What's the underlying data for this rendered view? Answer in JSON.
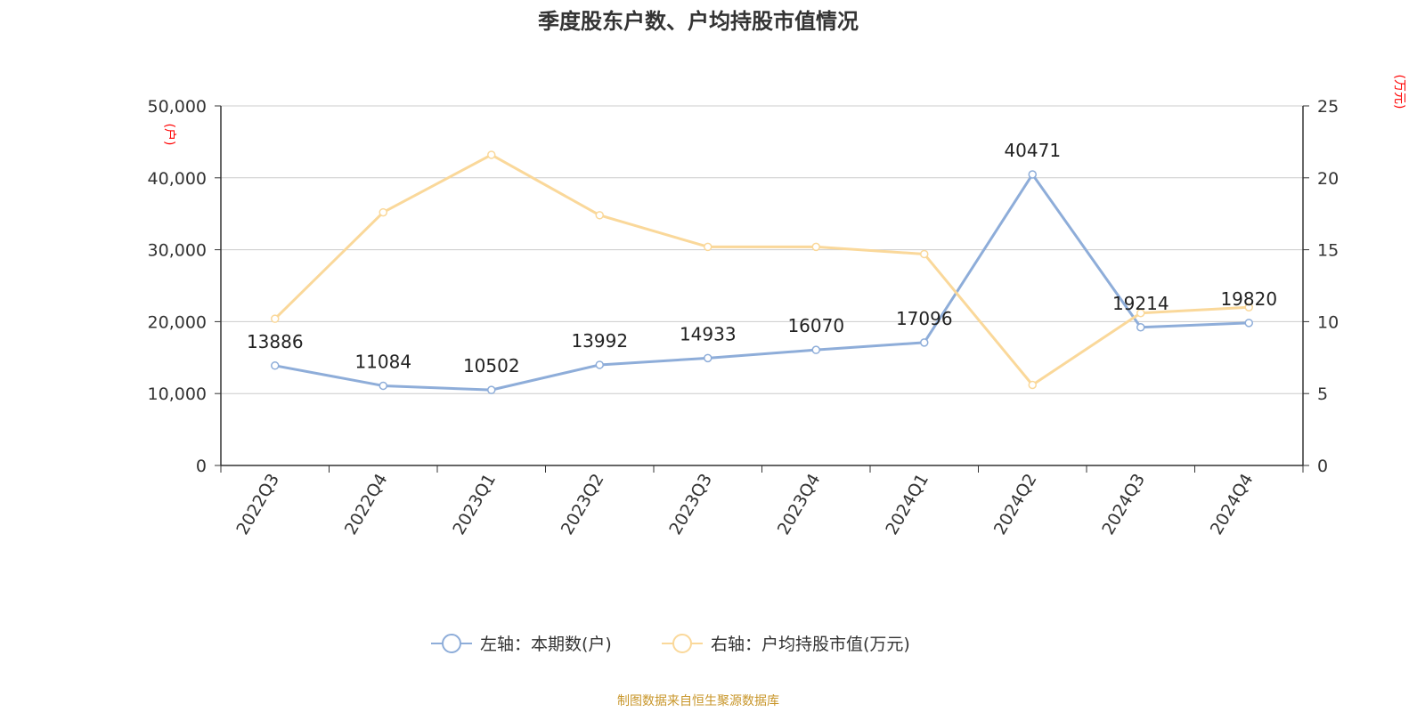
{
  "chart_data": {
    "type": "line",
    "title": "季度股东户数、户均持股市值情况",
    "categories": [
      "2022Q3",
      "2022Q4",
      "2023Q1",
      "2023Q2",
      "2023Q3",
      "2023Q4",
      "2024Q1",
      "2024Q2",
      "2024Q3",
      "2024Q4"
    ],
    "series": [
      {
        "name": "左轴：本期数(户)",
        "axis": "left",
        "color": "#8eadd9",
        "values": [
          13886,
          11084,
          10502,
          13992,
          14933,
          16070,
          17096,
          40471,
          19214,
          19820
        ],
        "show_labels": true
      },
      {
        "name": "右轴：户均持股市值(万元)",
        "axis": "right",
        "color": "#fad89a",
        "values": [
          10.2,
          17.6,
          21.6,
          17.4,
          15.2,
          15.2,
          14.7,
          5.6,
          10.6,
          11.0
        ],
        "show_labels": false
      }
    ],
    "y_left": {
      "unit": "(户)",
      "ylim": [
        0,
        50000
      ],
      "ticks": [
        "0",
        "10,000",
        "20,000",
        "30,000",
        "40,000",
        "50,000"
      ]
    },
    "y_right": {
      "unit": "(万元)",
      "ylim": [
        0,
        25
      ],
      "ticks": [
        "0",
        "5",
        "10",
        "15",
        "20",
        "25"
      ]
    },
    "grid": true,
    "legend_position": "bottom-center",
    "source": "制图数据来自恒生聚源数据库"
  }
}
